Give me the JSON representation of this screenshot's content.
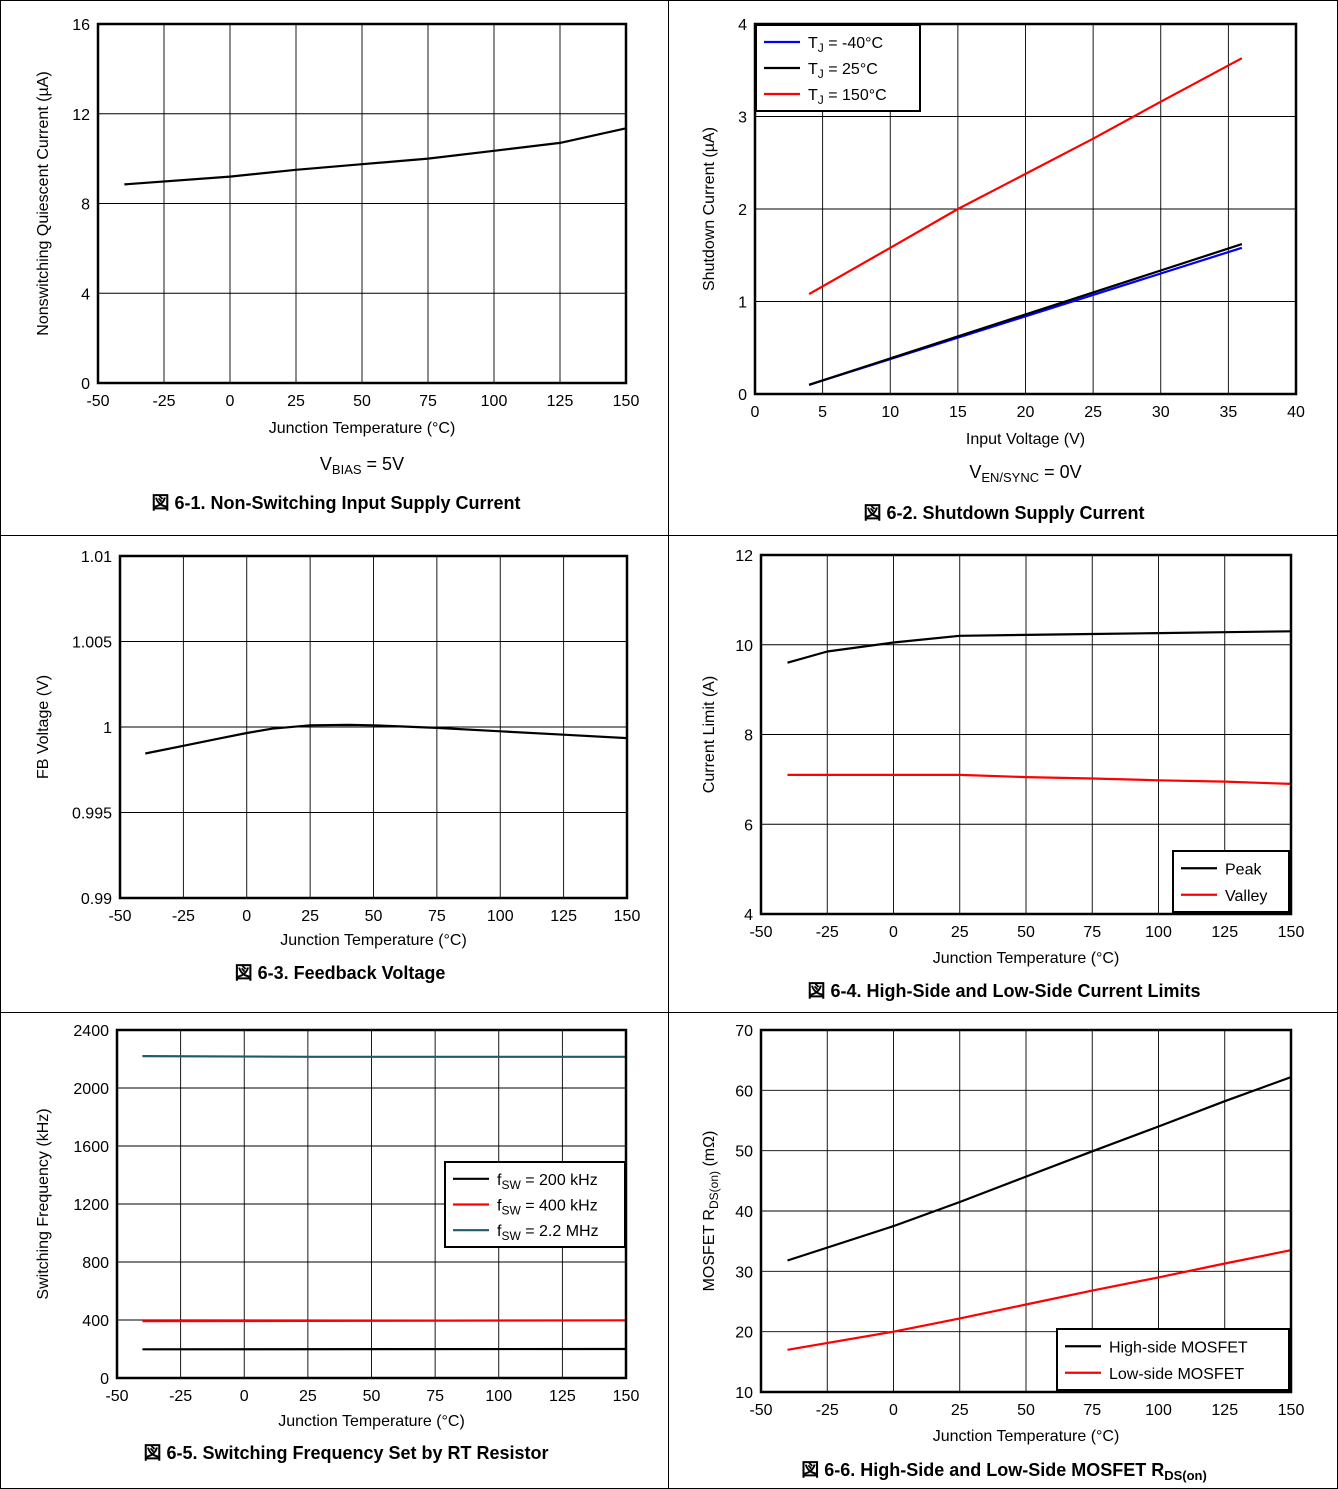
{
  "chart_data": [
    {
      "type": "line",
      "caption": "図 6-1. Non-Switching Input Supply Current",
      "condition": {
        "base": "V",
        "sub": "BIAS",
        "rest": " = 5V"
      },
      "xlabel": "Junction Temperature (°C)",
      "ylabel": "Nonswitching Quiescent Current (µA)",
      "xlim": [
        -50,
        150
      ],
      "ylim": [
        0,
        16
      ],
      "xticks": [
        "-50",
        "-25",
        "0",
        "25",
        "50",
        "75",
        "100",
        "125",
        "150"
      ],
      "yticks": [
        "0",
        "4",
        "8",
        "12",
        "16"
      ],
      "grid": true,
      "series": [
        {
          "color": "#000000",
          "x": [
            -40,
            0,
            25,
            50,
            75,
            100,
            125,
            150
          ],
          "y": [
            8.85,
            9.2,
            9.5,
            9.75,
            10.0,
            10.35,
            10.7,
            11.35
          ]
        }
      ]
    },
    {
      "type": "line",
      "caption": "図 6-2. Shutdown Supply Current",
      "condition": {
        "base": "V",
        "sub": "EN/SYNC",
        "rest": " = 0V"
      },
      "xlabel": "Input Voltage (V)",
      "ylabel": "Shutdown Current (µA)",
      "xlim": [
        0,
        40
      ],
      "ylim": [
        0,
        4
      ],
      "xticks": [
        "0",
        "5",
        "10",
        "15",
        "20",
        "25",
        "30",
        "35",
        "40"
      ],
      "yticks": [
        "0",
        "1",
        "2",
        "3",
        "4"
      ],
      "grid": true,
      "legend": "top-left",
      "series": [
        {
          "name": {
            "base": "T",
            "sub": "J",
            "rest": " = -40°C"
          },
          "color": "#0000ff",
          "x": [
            4,
            36
          ],
          "y": [
            0.1,
            1.58
          ]
        },
        {
          "name": {
            "base": "T",
            "sub": "J",
            "rest": " = 25°C"
          },
          "color": "#000000",
          "x": [
            4,
            36
          ],
          "y": [
            0.1,
            1.62
          ]
        },
        {
          "name": {
            "base": "T",
            "sub": "J",
            "rest": " = 150°C"
          },
          "color": "#ff0000",
          "x": [
            4,
            10,
            15,
            20,
            25,
            30,
            36
          ],
          "y": [
            1.08,
            1.58,
            2.0,
            2.38,
            2.76,
            3.16,
            3.63
          ]
        }
      ]
    },
    {
      "type": "line",
      "caption": "図 6-3. Feedback Voltage",
      "xlabel": "Junction Temperature (°C)",
      "ylabel": "FB Voltage (V)",
      "xlim": [
        -50,
        150
      ],
      "ylim": [
        0.99,
        1.01
      ],
      "xticks": [
        "-50",
        "-25",
        "0",
        "25",
        "50",
        "75",
        "100",
        "125",
        "150"
      ],
      "yticks": [
        "0.99",
        "0.995",
        "1",
        "1.005",
        "1.01"
      ],
      "grid": true,
      "series": [
        {
          "color": "#000000",
          "x": [
            -40,
            -25,
            -10,
            0,
            10,
            25,
            40,
            50,
            75,
            100,
            125,
            150
          ],
          "y": [
            0.99845,
            0.9989,
            0.99935,
            0.99965,
            0.9999,
            1.0001,
            1.00012,
            1.0001,
            0.99995,
            0.99975,
            0.99955,
            0.99935
          ]
        }
      ]
    },
    {
      "type": "line",
      "caption": "図 6-4. High-Side and Low-Side Current Limits",
      "xlabel": "Junction Temperature (°C)",
      "ylabel": "Current Limit (A)",
      "xlim": [
        -50,
        150
      ],
      "ylim": [
        4,
        12
      ],
      "xticks": [
        "-50",
        "-25",
        "0",
        "25",
        "50",
        "75",
        "100",
        "125",
        "150"
      ],
      "yticks": [
        "4",
        "6",
        "8",
        "10",
        "12"
      ],
      "grid": true,
      "legend": "bottom-right",
      "series": [
        {
          "name": {
            "base": "Peak"
          },
          "color": "#000000",
          "x": [
            -40,
            -25,
            0,
            25,
            50,
            75,
            100,
            125,
            150
          ],
          "y": [
            9.6,
            9.85,
            10.05,
            10.2,
            10.22,
            10.24,
            10.26,
            10.28,
            10.3
          ]
        },
        {
          "name": {
            "base": "Valley"
          },
          "color": "#ff0000",
          "x": [
            -40,
            0,
            25,
            50,
            75,
            100,
            125,
            150
          ],
          "y": [
            7.1,
            7.1,
            7.1,
            7.05,
            7.02,
            6.98,
            6.95,
            6.9
          ]
        }
      ]
    },
    {
      "type": "line",
      "caption": "図 6-5. Switching Frequency Set by RT Resistor",
      "xlabel": "Junction Temperature (°C)",
      "ylabel": "Switching Frequency (kHz)",
      "xlim": [
        -50,
        150
      ],
      "ylim": [
        0,
        2400
      ],
      "xticks": [
        "-50",
        "-25",
        "0",
        "25",
        "50",
        "75",
        "100",
        "125",
        "150"
      ],
      "yticks": [
        "0",
        "400",
        "800",
        "1200",
        "1600",
        "2000",
        "2400"
      ],
      "grid": true,
      "legend": "right",
      "series": [
        {
          "name": {
            "base": "f",
            "sub": "SW",
            "rest": " = 200 kHz"
          },
          "color": "#000000",
          "x": [
            -40,
            150
          ],
          "y": [
            198,
            200
          ]
        },
        {
          "name": {
            "base": "f",
            "sub": "SW",
            "rest": " = 400 kHz"
          },
          "color": "#ff0000",
          "x": [
            -40,
            150
          ],
          "y": [
            392,
            398
          ]
        },
        {
          "name": {
            "base": "f",
            "sub": "SW",
            "rest": " = 2.2 MHz"
          },
          "color": "#1f5a6e",
          "x": [
            -40,
            25,
            150
          ],
          "y": [
            2220,
            2215,
            2215
          ]
        }
      ]
    },
    {
      "type": "line",
      "caption": {
        "base": "図 6-6. High-Side and Low-Side MOSFET R",
        "sub": "DS(on)"
      },
      "xlabel": "Junction Temperature (°C)",
      "ylabel": {
        "base": "MOSFET R",
        "sub": "DS(on)",
        "rest": " (mΩ)"
      },
      "xlim": [
        -50,
        150
      ],
      "ylim": [
        10,
        70
      ],
      "xticks": [
        "-50",
        "-25",
        "0",
        "25",
        "50",
        "75",
        "100",
        "125",
        "150"
      ],
      "yticks": [
        "10",
        "20",
        "30",
        "40",
        "50",
        "60",
        "70"
      ],
      "grid": true,
      "legend": "bottom-right",
      "series": [
        {
          "name": {
            "base": "High-side MOSFET"
          },
          "color": "#000000",
          "x": [
            -40,
            0,
            25,
            50,
            75,
            100,
            125,
            150
          ],
          "y": [
            31.8,
            37.5,
            41.5,
            45.7,
            49.9,
            54.0,
            58.2,
            62.2
          ]
        },
        {
          "name": {
            "base": "Low-side MOSFET"
          },
          "color": "#ff0000",
          "x": [
            -40,
            0,
            25,
            50,
            75,
            100,
            125,
            150
          ],
          "y": [
            17.0,
            20.0,
            22.2,
            24.5,
            26.8,
            29.0,
            31.3,
            33.5
          ]
        }
      ]
    }
  ]
}
